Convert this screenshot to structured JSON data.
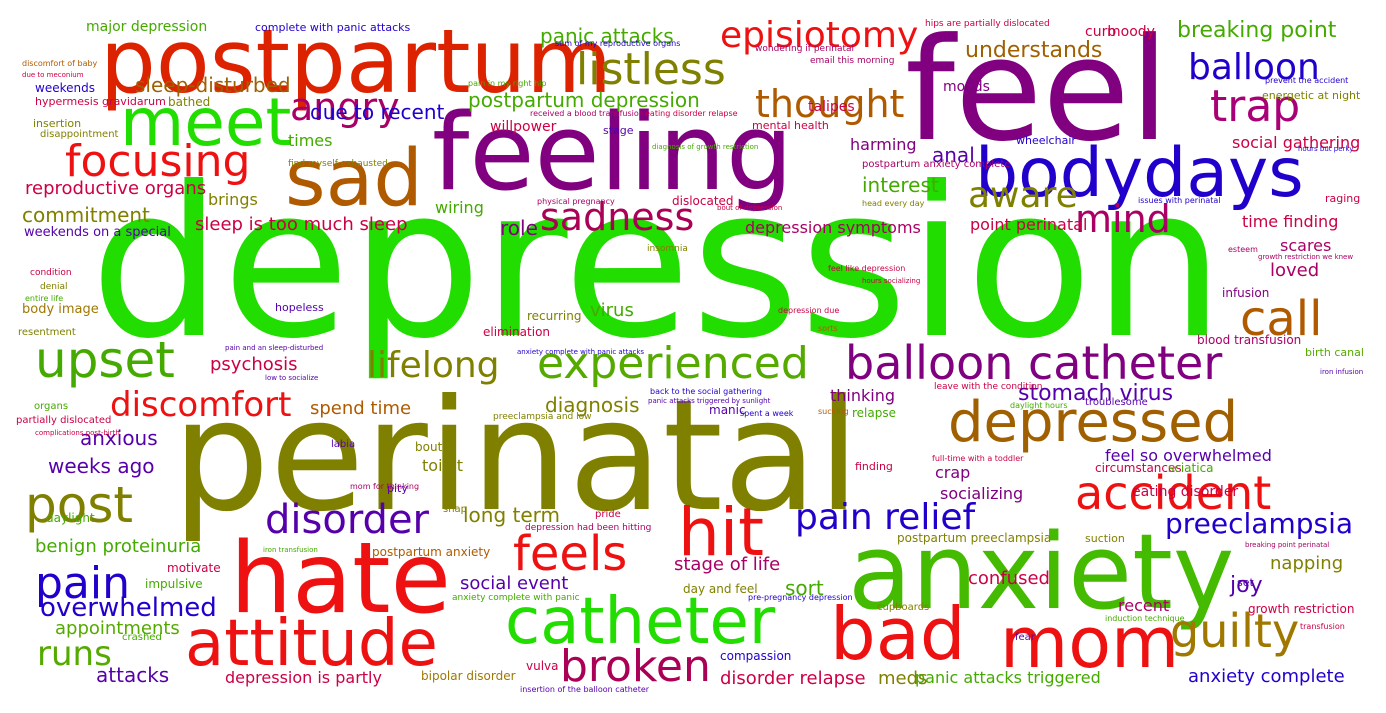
{
  "palette": {
    "green": "#22dd00",
    "olive": "#808000",
    "purple": "#800080",
    "red": "#ee1111",
    "blue": "#2200cc",
    "brown": "#b05a00",
    "crimson": "#cc0044",
    "leaf": "#55aa00",
    "indigo": "#5500aa",
    "mustard": "#a07800"
  },
  "words": [
    {
      "text": "depression",
      "color": "#22dd00"
    },
    {
      "text": "perinatal",
      "color": "#808000"
    },
    {
      "text": "feel",
      "color": "#800080"
    },
    {
      "text": "feeling",
      "color": "#800080"
    },
    {
      "text": "anxiety",
      "color": "#44bb00"
    },
    {
      "text": "postpartum",
      "color": "#dd2200"
    },
    {
      "text": "hate",
      "color": "#ee1111"
    },
    {
      "text": "sad",
      "color": "#b05a00"
    },
    {
      "text": "meet",
      "color": "#22dd00"
    },
    {
      "text": "bodydays",
      "color": "#2200cc"
    },
    {
      "text": "mom",
      "color": "#ee1111"
    },
    {
      "text": "bad",
      "color": "#ee1111"
    },
    {
      "text": "catheter",
      "color": "#22dd00"
    },
    {
      "text": "attitude",
      "color": "#ee1111"
    },
    {
      "text": "hit",
      "color": "#ee1111"
    },
    {
      "text": "accident",
      "color": "#ee1111"
    },
    {
      "text": "depressed",
      "color": "#a06000"
    },
    {
      "text": "post",
      "color": "#808000"
    },
    {
      "text": "upset",
      "color": "#44aa00"
    },
    {
      "text": "listless",
      "color": "#808000"
    },
    {
      "text": "call",
      "color": "#b05a00"
    },
    {
      "text": "episiotomy",
      "color": "#ee1111"
    },
    {
      "text": "trap",
      "color": "#aa0077"
    },
    {
      "text": "balloon catheter",
      "color": "#800080"
    },
    {
      "text": "experienced",
      "color": "#55aa00"
    },
    {
      "text": "feels",
      "color": "#ee1111"
    },
    {
      "text": "broken",
      "color": "#aa0055"
    },
    {
      "text": "guilty",
      "color": "#a07800"
    },
    {
      "text": "pain",
      "color": "#2200cc"
    },
    {
      "text": "disorder",
      "color": "#5500aa"
    },
    {
      "text": "focusing",
      "color": "#ee1111"
    },
    {
      "text": "angry",
      "color": "#aa0066"
    },
    {
      "text": "thought",
      "color": "#b05a00"
    },
    {
      "text": "sadness",
      "color": "#aa0055"
    },
    {
      "text": "aware",
      "color": "#808000"
    },
    {
      "text": "mind",
      "color": "#aa0066"
    },
    {
      "text": "balloon",
      "color": "#2200cc"
    },
    {
      "text": "pain relief",
      "color": "#2200cc"
    },
    {
      "text": "lifelong",
      "color": "#808000"
    },
    {
      "text": "discomfort",
      "color": "#ee1111"
    },
    {
      "text": "runs",
      "color": "#55aa00"
    },
    {
      "text": "overwhelmed",
      "color": "#2200cc"
    },
    {
      "text": "preeclampsia",
      "color": "#2200cc"
    },
    {
      "text": "postpartum depression",
      "color": "#44aa00"
    },
    {
      "text": "panic attacks",
      "color": "#44aa00"
    },
    {
      "text": "breaking point",
      "color": "#44aa00"
    },
    {
      "text": "understands",
      "color": "#a06000"
    },
    {
      "text": "sleep-disturbed",
      "color": "#a06000"
    },
    {
      "text": "due to recent",
      "color": "#2200cc"
    },
    {
      "text": "stomach virus",
      "color": "#5500aa"
    },
    {
      "text": "diagnosis",
      "color": "#808000"
    },
    {
      "text": "anxious",
      "color": "#5500aa"
    },
    {
      "text": "weeks ago",
      "color": "#5500aa"
    },
    {
      "text": "commitment",
      "color": "#808000"
    },
    {
      "text": "interest",
      "color": "#44aa00"
    },
    {
      "text": "anal",
      "color": "#5500aa"
    },
    {
      "text": "role",
      "color": "#800080"
    },
    {
      "text": "sleep is too much sleep",
      "color": "#cc0044"
    },
    {
      "text": "reproductive organs",
      "color": "#cc0044"
    },
    {
      "text": "psychosis",
      "color": "#cc0044"
    },
    {
      "text": "spend time",
      "color": "#b05a00"
    },
    {
      "text": "long term",
      "color": "#808000"
    },
    {
      "text": "benign proteinuria",
      "color": "#44aa00"
    },
    {
      "text": "stage of life",
      "color": "#aa0066"
    },
    {
      "text": "social event",
      "color": "#5500aa"
    },
    {
      "text": "appointments",
      "color": "#55aa00"
    },
    {
      "text": "attacks",
      "color": "#5500aa"
    },
    {
      "text": "depression is partly",
      "color": "#cc0044"
    },
    {
      "text": "disorder relapse",
      "color": "#cc0044"
    },
    {
      "text": "meds",
      "color": "#808000"
    },
    {
      "text": "panic attacks triggered",
      "color": "#44aa00"
    },
    {
      "text": "anxiety complete",
      "color": "#2200cc"
    },
    {
      "text": "confused",
      "color": "#cc0044"
    },
    {
      "text": "joy",
      "color": "#5500aa"
    },
    {
      "text": "napping",
      "color": "#808000"
    },
    {
      "text": "recent",
      "color": "#aa0066"
    },
    {
      "text": "sort",
      "color": "#44aa00"
    },
    {
      "text": "virus",
      "color": "#44aa00"
    },
    {
      "text": "loved",
      "color": "#aa0066"
    },
    {
      "text": "scares",
      "color": "#aa0066"
    },
    {
      "text": "time finding",
      "color": "#cc0044"
    },
    {
      "text": "point perinatal",
      "color": "#cc0044"
    },
    {
      "text": "depression symptoms",
      "color": "#aa0066"
    },
    {
      "text": "social gathering",
      "color": "#cc0044"
    },
    {
      "text": "harming",
      "color": "#800080"
    },
    {
      "text": "thinking",
      "color": "#800080"
    },
    {
      "text": "feel so overwhelmed",
      "color": "#5500aa"
    },
    {
      "text": "eating disorder",
      "color": "#cc0044"
    },
    {
      "text": "toilet",
      "color": "#808000"
    },
    {
      "text": "crap",
      "color": "#800080"
    },
    {
      "text": "socializing",
      "color": "#800080"
    },
    {
      "text": "brings",
      "color": "#808000"
    },
    {
      "text": "wiring",
      "color": "#44aa00"
    },
    {
      "text": "times",
      "color": "#44aa00"
    },
    {
      "text": "willpower",
      "color": "#cc0044"
    },
    {
      "text": "talipes",
      "color": "#cc0044"
    },
    {
      "text": "moods",
      "color": "#800080"
    },
    {
      "text": "curb",
      "color": "#cc0044"
    },
    {
      "text": "moody",
      "color": "#cc0044"
    },
    {
      "text": "major depression",
      "color": "#44aa00"
    },
    {
      "text": "bathed",
      "color": "#808000"
    },
    {
      "text": "weekends",
      "color": "#2200cc"
    },
    {
      "text": "hypermesis gravidarum",
      "color": "#cc0044"
    },
    {
      "text": "insertion",
      "color": "#808000"
    },
    {
      "text": "disappointment",
      "color": "#808000"
    },
    {
      "text": "complete with panic attacks",
      "color": "#2200cc"
    },
    {
      "text": "weekends on a special",
      "color": "#5500aa"
    },
    {
      "text": "body image",
      "color": "#a07800"
    },
    {
      "text": "resentment",
      "color": "#808000"
    },
    {
      "text": "organs",
      "color": "#44aa00"
    },
    {
      "text": "partially dislocated",
      "color": "#cc0044"
    },
    {
      "text": "daylight",
      "color": "#44aa00"
    },
    {
      "text": "motivate",
      "color": "#cc0044"
    },
    {
      "text": "impulsive",
      "color": "#44aa00"
    },
    {
      "text": "postpartum anxiety",
      "color": "#b05a00"
    },
    {
      "text": "bipolar disorder",
      "color": "#a07800"
    },
    {
      "text": "vulva",
      "color": "#cc0044"
    },
    {
      "text": "compassion",
      "color": "#2200cc"
    },
    {
      "text": "recurring",
      "color": "#808000"
    },
    {
      "text": "elimination",
      "color": "#cc0044"
    },
    {
      "text": "manic",
      "color": "#5500aa"
    },
    {
      "text": "dislocated",
      "color": "#cc0044"
    },
    {
      "text": "relapse",
      "color": "#44aa00"
    },
    {
      "text": "bout",
      "color": "#808000"
    },
    {
      "text": "circumstances",
      "color": "#cc0044"
    },
    {
      "text": "sciatica",
      "color": "#44aa00"
    },
    {
      "text": "finding",
      "color": "#cc0044"
    },
    {
      "text": "infusion",
      "color": "#800080"
    },
    {
      "text": "blood transfusion",
      "color": "#aa0066"
    },
    {
      "text": "birth canal",
      "color": "#55aa00"
    },
    {
      "text": "raging",
      "color": "#cc0044"
    },
    {
      "text": "wheelchair",
      "color": "#2200cc"
    },
    {
      "text": "energetic at night",
      "color": "#808000"
    },
    {
      "text": "growth restriction",
      "color": "#cc0044"
    },
    {
      "text": "set",
      "color": "#5500aa"
    },
    {
      "text": "suction",
      "color": "#808000"
    },
    {
      "text": "mental health",
      "color": "#cc0044"
    },
    {
      "text": "hopeless",
      "color": "#5500aa"
    },
    {
      "text": "troublesome",
      "color": "#5500aa"
    },
    {
      "text": "pity",
      "color": "#5500aa"
    },
    {
      "text": "fear",
      "color": "#5500aa"
    },
    {
      "text": "cupboards",
      "color": "#808000"
    },
    {
      "text": "crashed",
      "color": "#44aa00"
    },
    {
      "text": "labia",
      "color": "#5500aa"
    },
    {
      "text": "snap",
      "color": "#808000"
    },
    {
      "text": "pride",
      "color": "#cc0044"
    },
    {
      "text": "insomnia",
      "color": "#808000"
    },
    {
      "text": "condition",
      "color": "#cc0044"
    },
    {
      "text": "denial",
      "color": "#808000"
    },
    {
      "text": "entire life",
      "color": "#44aa00"
    },
    {
      "text": "day and feel",
      "color": "#808000"
    },
    {
      "text": "stage",
      "color": "#5500aa"
    },
    {
      "text": "postpartum preeclampsia",
      "color": "#808000"
    },
    {
      "text": "postpartum anxiety complete",
      "color": "#aa0066"
    },
    {
      "text": "sum of my reproductive organs",
      "color": "#2200cc"
    },
    {
      "text": "wondering if perinatal",
      "color": "#aa0066"
    },
    {
      "text": "email this morning",
      "color": "#aa0066"
    },
    {
      "text": "hips are partially dislocated",
      "color": "#cc0044"
    },
    {
      "text": "pain in my right hip",
      "color": "#44aa00"
    },
    {
      "text": "received a blood transfusion",
      "color": "#aa0066"
    },
    {
      "text": "eating disorder relapse",
      "color": "#cc0044"
    },
    {
      "text": "diagnosis of growth restriction",
      "color": "#44aa00"
    },
    {
      "text": "find myself exhausted",
      "color": "#808000"
    },
    {
      "text": "physical pregnancy",
      "color": "#aa0066"
    },
    {
      "text": "bout of depression",
      "color": "#cc0044"
    },
    {
      "text": "head every day",
      "color": "#808000"
    },
    {
      "text": "issues with perinatal",
      "color": "#2200cc"
    },
    {
      "text": "feel like depression",
      "color": "#cc0044"
    },
    {
      "text": "hours socializing",
      "color": "#cc0044"
    },
    {
      "text": "depression due",
      "color": "#cc0044"
    },
    {
      "text": "sorts",
      "color": "#b05a00"
    },
    {
      "text": "leave with the condition",
      "color": "#cc0044"
    },
    {
      "text": "full-time with a toddler",
      "color": "#cc0044"
    },
    {
      "text": "daylight hours",
      "color": "#44aa00"
    },
    {
      "text": "sucking",
      "color": "#b05a00"
    },
    {
      "text": "spent a week",
      "color": "#2200cc"
    },
    {
      "text": "panic attacks triggered by sunlight",
      "color": "#5500aa"
    },
    {
      "text": "back to the social gathering",
      "color": "#2200cc"
    },
    {
      "text": "preeclampsia and low",
      "color": "#808000"
    },
    {
      "text": "anxiety complete with panic attacks",
      "color": "#2200cc"
    },
    {
      "text": "pain and an sleep-disturbed",
      "color": "#5500aa"
    },
    {
      "text": "low to socialize",
      "color": "#5500aa"
    },
    {
      "text": "discomfort of baby",
      "color": "#b05a00"
    },
    {
      "text": "due to meconium",
      "color": "#cc0044"
    },
    {
      "text": "prevent the accident",
      "color": "#2200cc"
    },
    {
      "text": "hours but perky",
      "color": "#2200cc"
    },
    {
      "text": "growth restriction we knew",
      "color": "#aa0066"
    },
    {
      "text": "esteem",
      "color": "#aa0066"
    },
    {
      "text": "iron infusion",
      "color": "#5500aa"
    },
    {
      "text": "complications post-birth",
      "color": "#cc0044"
    },
    {
      "text": "mom for thinking",
      "color": "#aa0066"
    },
    {
      "text": "depression had been hitting",
      "color": "#aa0066"
    },
    {
      "text": "iron transfusion",
      "color": "#44aa00"
    },
    {
      "text": "anxiety complete with panic",
      "color": "#44aa00"
    },
    {
      "text": "pre-pregnancy depression",
      "color": "#2200cc"
    },
    {
      "text": "induction technique",
      "color": "#44aa00"
    },
    {
      "text": "breaking point perinatal",
      "color": "#aa0066"
    },
    {
      "text": "transfusion",
      "color": "#cc0044"
    },
    {
      "text": "insertion of the balloon catheter",
      "color": "#5500aa"
    }
  ]
}
